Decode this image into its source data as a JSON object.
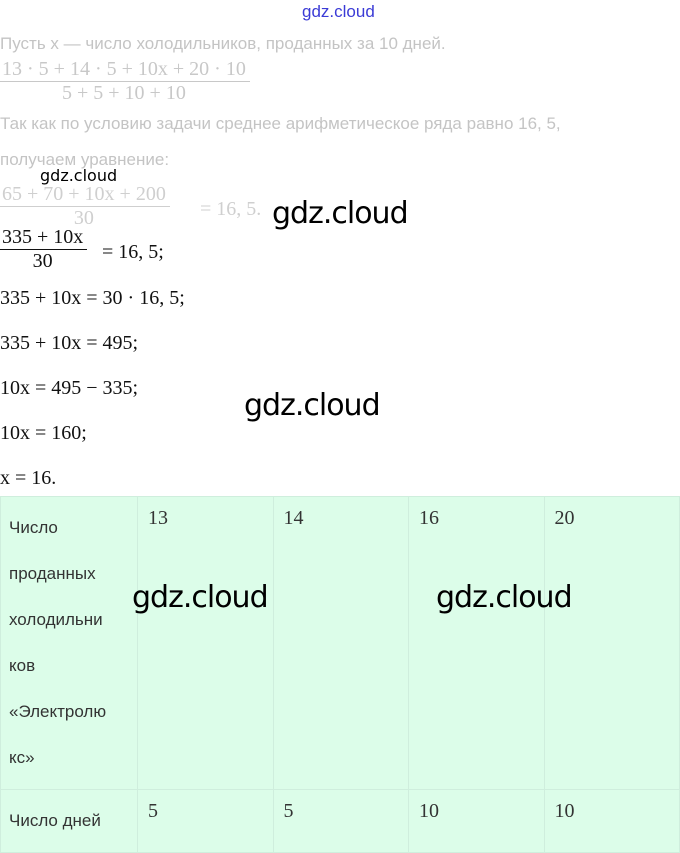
{
  "watermark": {
    "top": "gdz.cloud",
    "label": "gdz.cloud"
  },
  "text": {
    "line1": "Пусть x — число холодильников, проданных за 10 дней.",
    "frac1_num": "13 · 5 + 14 · 5 + 10x + 20 · 10",
    "frac1_den": "5 + 5 + 10 + 10",
    "line2": "Так как по условию задачи среднее арифметическое ряда равно 16, 5,",
    "line3": "получаем уравнение:",
    "frac2_num": "65 + 70 + 10x + 200",
    "frac2_den": "30",
    "frac2_rhs": "= 16, 5.",
    "frac3_num": "335 + 10x",
    "frac3_den": "30",
    "frac3_rhs": "= 16, 5;"
  },
  "equations": [
    "335 + 10x = 30 · 16, 5;",
    "335 + 10x = 495;",
    "10x = 495 − 335;",
    "10x = 160;",
    "x = 16."
  ],
  "table": {
    "rows": [
      {
        "header": "Число проданных холодильни ков «Электролю кс»",
        "values": [
          "13",
          "14",
          "16",
          "20"
        ]
      },
      {
        "header": "Число дней",
        "values": [
          "5",
          "5",
          "10",
          "10"
        ]
      }
    ]
  }
}
